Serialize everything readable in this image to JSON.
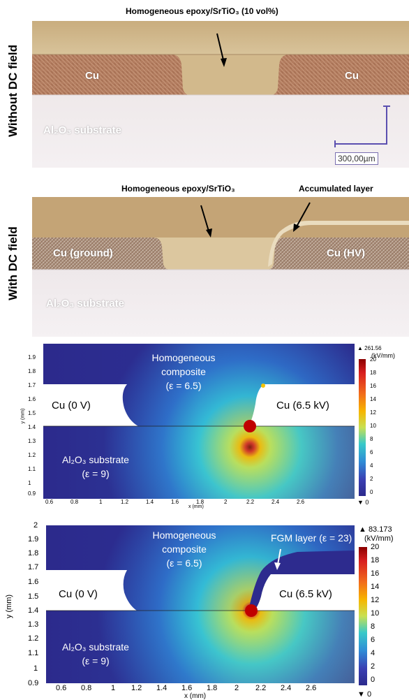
{
  "panel_a": {
    "side_label": "Without DC field",
    "caption": "Homogeneous epoxy/SrTiO₃ (10 vol%)",
    "left_electrode": "Cu",
    "right_electrode": "Cu",
    "substrate": "Al₂O₃ substrate",
    "scale_bar": "300,00µm"
  },
  "panel_b": {
    "side_label": "With DC field",
    "caption_center": "Homogeneous epoxy/SrTiO₃",
    "caption_right": "Accumulated layer",
    "left_electrode": "Cu (ground)",
    "right_electrode": "Cu (HV)",
    "substrate": "Al₂O₃ substrate"
  },
  "panel_c": {
    "composite_label_1": "Homogeneous",
    "composite_label_2": "composite",
    "composite_eps": "(ε = 6.5)",
    "left_electrode": "Cu (0 V)",
    "right_electrode": "Cu (6.5 kV)",
    "substrate_label": "Al₂O₃ substrate",
    "substrate_eps": "(ε = 9)",
    "xlabel": "x (mm)",
    "ylabel": "y (mm)",
    "x_ticks": [
      "0.6",
      "0.8",
      "1",
      "1.2",
      "1.4",
      "1.6",
      "1.8",
      "2",
      "2.2",
      "2.4",
      "2.6"
    ],
    "y_ticks": [
      "1.9",
      "1.8",
      "1.7",
      "1.6",
      "1.5",
      "1.4",
      "1.3",
      "1.2",
      "1.1",
      "1",
      "0.9"
    ],
    "cbar_max": "▲ 261.56",
    "cbar_unit": "(kV/mm)",
    "cbar_ticks": [
      "20",
      "18",
      "16",
      "14",
      "12",
      "10",
      "8",
      "6",
      "4",
      "2",
      "0"
    ],
    "cbar_min": "▼ 0"
  },
  "panel_d": {
    "composite_label_1": "Homogeneous",
    "composite_label_2": "composite",
    "composite_eps": "(ε = 6.5)",
    "fgm_label": "FGM layer (ε = 23)",
    "left_electrode": "Cu (0 V)",
    "right_electrode": "Cu (6.5 kV)",
    "substrate_label": "Al₂O₃ substrate",
    "substrate_eps": "(ε = 9)",
    "xlabel": "x (mm)",
    "ylabel": "y (mm)",
    "x_ticks": [
      "0.6",
      "0.8",
      "1",
      "1.2",
      "1.4",
      "1.6",
      "1.8",
      "2",
      "2.2",
      "2.4",
      "2.6"
    ],
    "y_ticks": [
      "2",
      "1.9",
      "1.8",
      "1.7",
      "1.6",
      "1.5",
      "1.4",
      "1.3",
      "1.2",
      "1.1",
      "1",
      "0.9"
    ],
    "cbar_max": "▲ 83.173",
    "cbar_unit": "(kV/mm)",
    "cbar_ticks": [
      "20",
      "18",
      "16",
      "14",
      "12",
      "10",
      "8",
      "6",
      "4",
      "2",
      "0"
    ],
    "cbar_min": "▼ 0"
  },
  "colors": {
    "epoxy": "#cfb98e",
    "copper": "#b07a5c",
    "substrate": "#f0ecee",
    "field_low": "#2c2a8c",
    "field_high": "#d81e1e"
  }
}
